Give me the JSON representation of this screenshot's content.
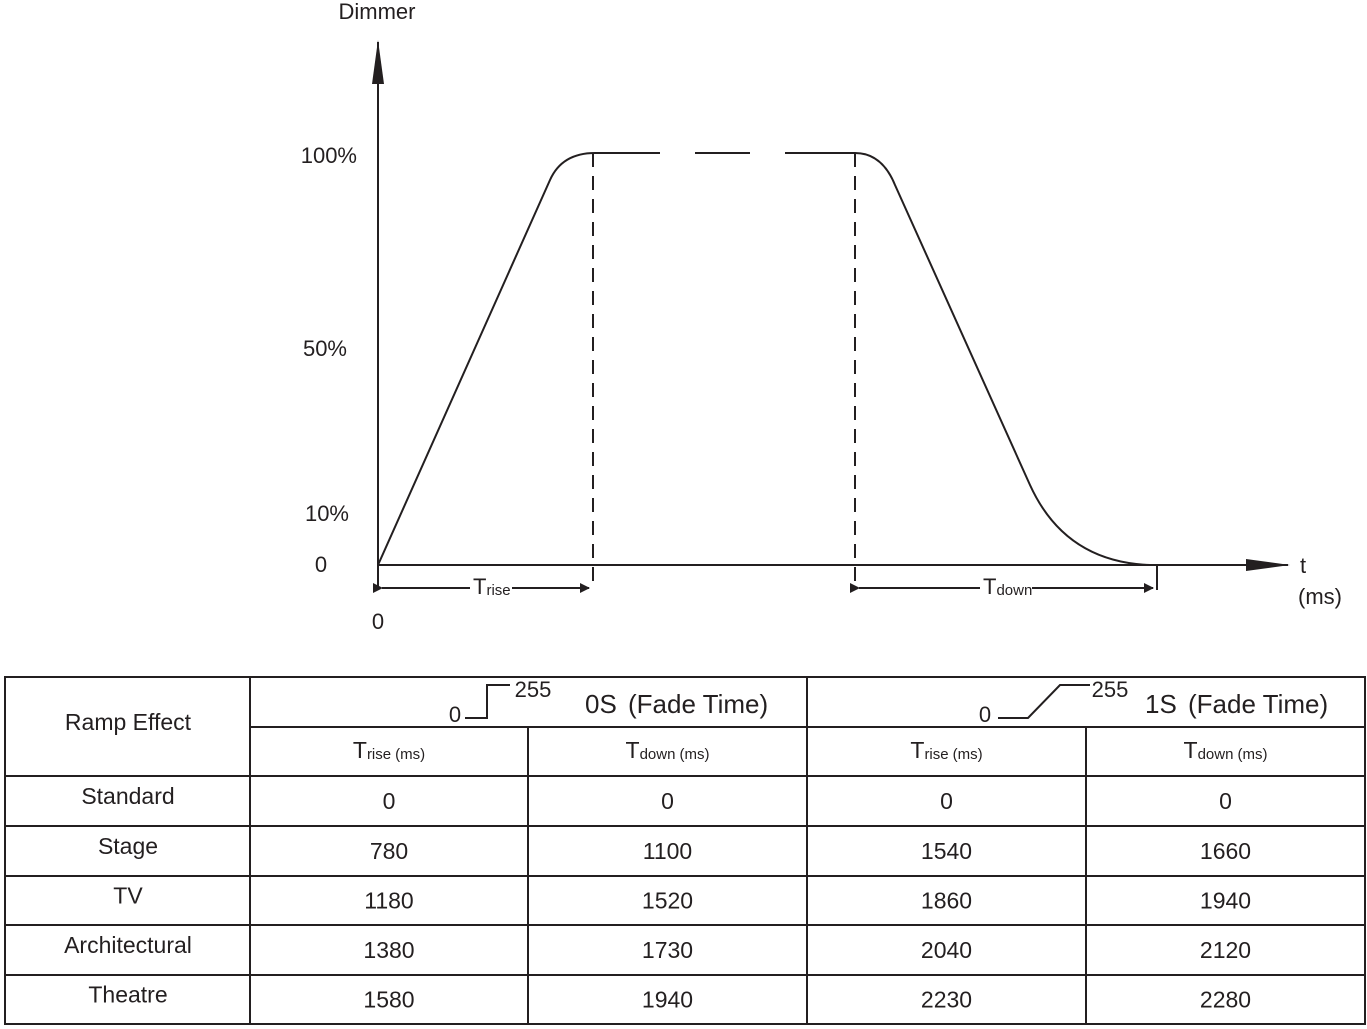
{
  "diagram": {
    "y_axis_label": "Dimmer",
    "y_labels": [
      "100%",
      "50%",
      "10%",
      "0"
    ],
    "x_origin": "0",
    "x_axis_label": [
      "t",
      "(ms)"
    ],
    "spans": [
      {
        "symbol": "T",
        "subscript": "rise"
      },
      {
        "symbol": "T",
        "subscript": "down"
      }
    ]
  },
  "table": {
    "corner": "Ramp Effect",
    "groups": [
      {
        "icon_low": "0",
        "icon_high": "255",
        "name": "0S",
        "note": "(Fade Time)"
      },
      {
        "icon_low": "0",
        "icon_high": "255",
        "name": "1S",
        "note": "(Fade Time)"
      }
    ],
    "columns": [
      {
        "symbol": "T",
        "subscript": "rise",
        "unit": "(ms)"
      },
      {
        "symbol": "T",
        "subscript": "down",
        "unit": "(ms)"
      },
      {
        "symbol": "T",
        "subscript": "rise",
        "unit": "(ms)"
      },
      {
        "symbol": "T",
        "subscript": "down",
        "unit": "(ms)"
      }
    ],
    "rows": [
      [
        "Standard",
        0,
        0,
        0,
        0
      ],
      [
        "Stage",
        780,
        1100,
        1540,
        1660
      ],
      [
        "TV",
        1180,
        1520,
        1860,
        1940
      ],
      [
        "Architectural",
        1380,
        1730,
        2040,
        2120
      ],
      [
        "Theatre",
        1580,
        1940,
        2230,
        2280
      ]
    ]
  }
}
